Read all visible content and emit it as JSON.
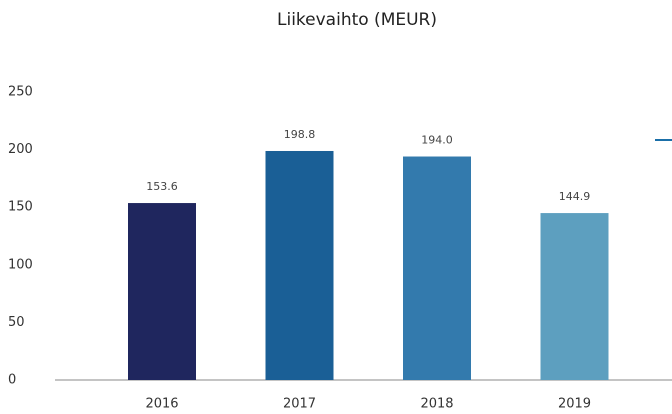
{
  "chart_data": {
    "type": "bar",
    "title": "Liikevaihto (MEUR)",
    "categories": [
      "2016",
      "2017",
      "2018",
      "2019"
    ],
    "values": [
      153.6,
      198.8,
      194.0,
      144.9
    ],
    "value_labels": [
      "153.6",
      "198.8",
      "194.0",
      "144.9"
    ],
    "colors": [
      "#1f265e",
      "#1a5f96",
      "#337aad",
      "#5d9fbf"
    ],
    "ylim": [
      0,
      250
    ],
    "yticks": [
      0,
      50,
      100,
      150,
      200,
      250
    ],
    "grid": false
  }
}
